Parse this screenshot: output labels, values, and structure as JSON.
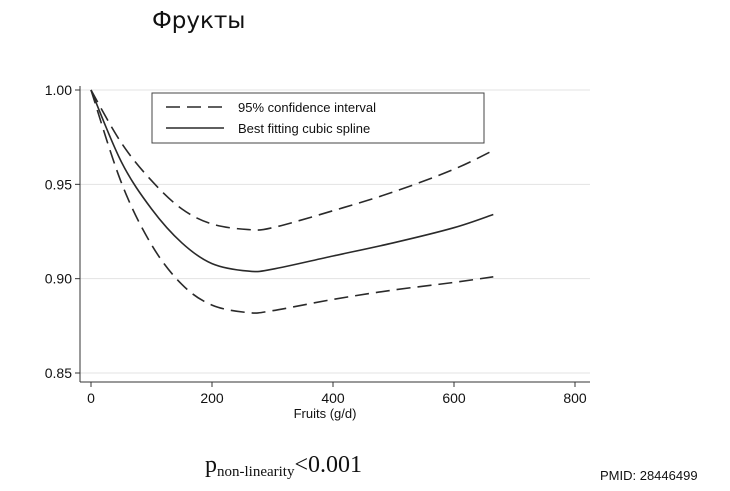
{
  "header": {
    "title": "Фрукты"
  },
  "footer": {
    "p_main": "p",
    "p_sub": "non-linearity",
    "p_value": "<0.001",
    "pmid": "PMID: 28446499"
  },
  "chart_data": {
    "type": "line",
    "title": "",
    "xlabel": "Fruits (g/d)",
    "ylabel": "",
    "xlim": [
      0,
      800
    ],
    "ylim": [
      0.85,
      1.0
    ],
    "x_ticks": [
      0,
      200,
      400,
      600,
      800
    ],
    "y_ticks": [
      0.85,
      0.9,
      0.95,
      1.0
    ],
    "x_tick_labels": [
      "0",
      "200",
      "400",
      "600",
      "800"
    ],
    "y_tick_labels": [
      "0.85",
      "0.90",
      "0.95",
      "1.00"
    ],
    "grid": "horizontal",
    "legend_position": "top",
    "legend": [
      "95% confidence interval",
      "Best fitting cubic spline"
    ],
    "series": [
      {
        "name": "Best fitting cubic spline",
        "style": "solid",
        "x": [
          0,
          50,
          100,
          150,
          200,
          260,
          300,
          400,
          500,
          600,
          665
        ],
        "y": [
          1.0,
          0.962,
          0.937,
          0.919,
          0.908,
          0.904,
          0.905,
          0.912,
          0.919,
          0.927,
          0.934
        ]
      },
      {
        "name": "95% confidence interval",
        "style": "dashed",
        "x": [
          0,
          50,
          100,
          150,
          200,
          260,
          300,
          400,
          500,
          600,
          665
        ],
        "y": [
          1.0,
          0.972,
          0.952,
          0.937,
          0.929,
          0.926,
          0.927,
          0.936,
          0.946,
          0.958,
          0.968
        ]
      },
      {
        "name": "95% confidence interval",
        "style": "dashed",
        "x": [
          0,
          50,
          100,
          150,
          200,
          260,
          300,
          400,
          500,
          600,
          665
        ],
        "y": [
          1.0,
          0.951,
          0.918,
          0.897,
          0.886,
          0.882,
          0.883,
          0.889,
          0.894,
          0.898,
          0.901
        ]
      }
    ]
  }
}
